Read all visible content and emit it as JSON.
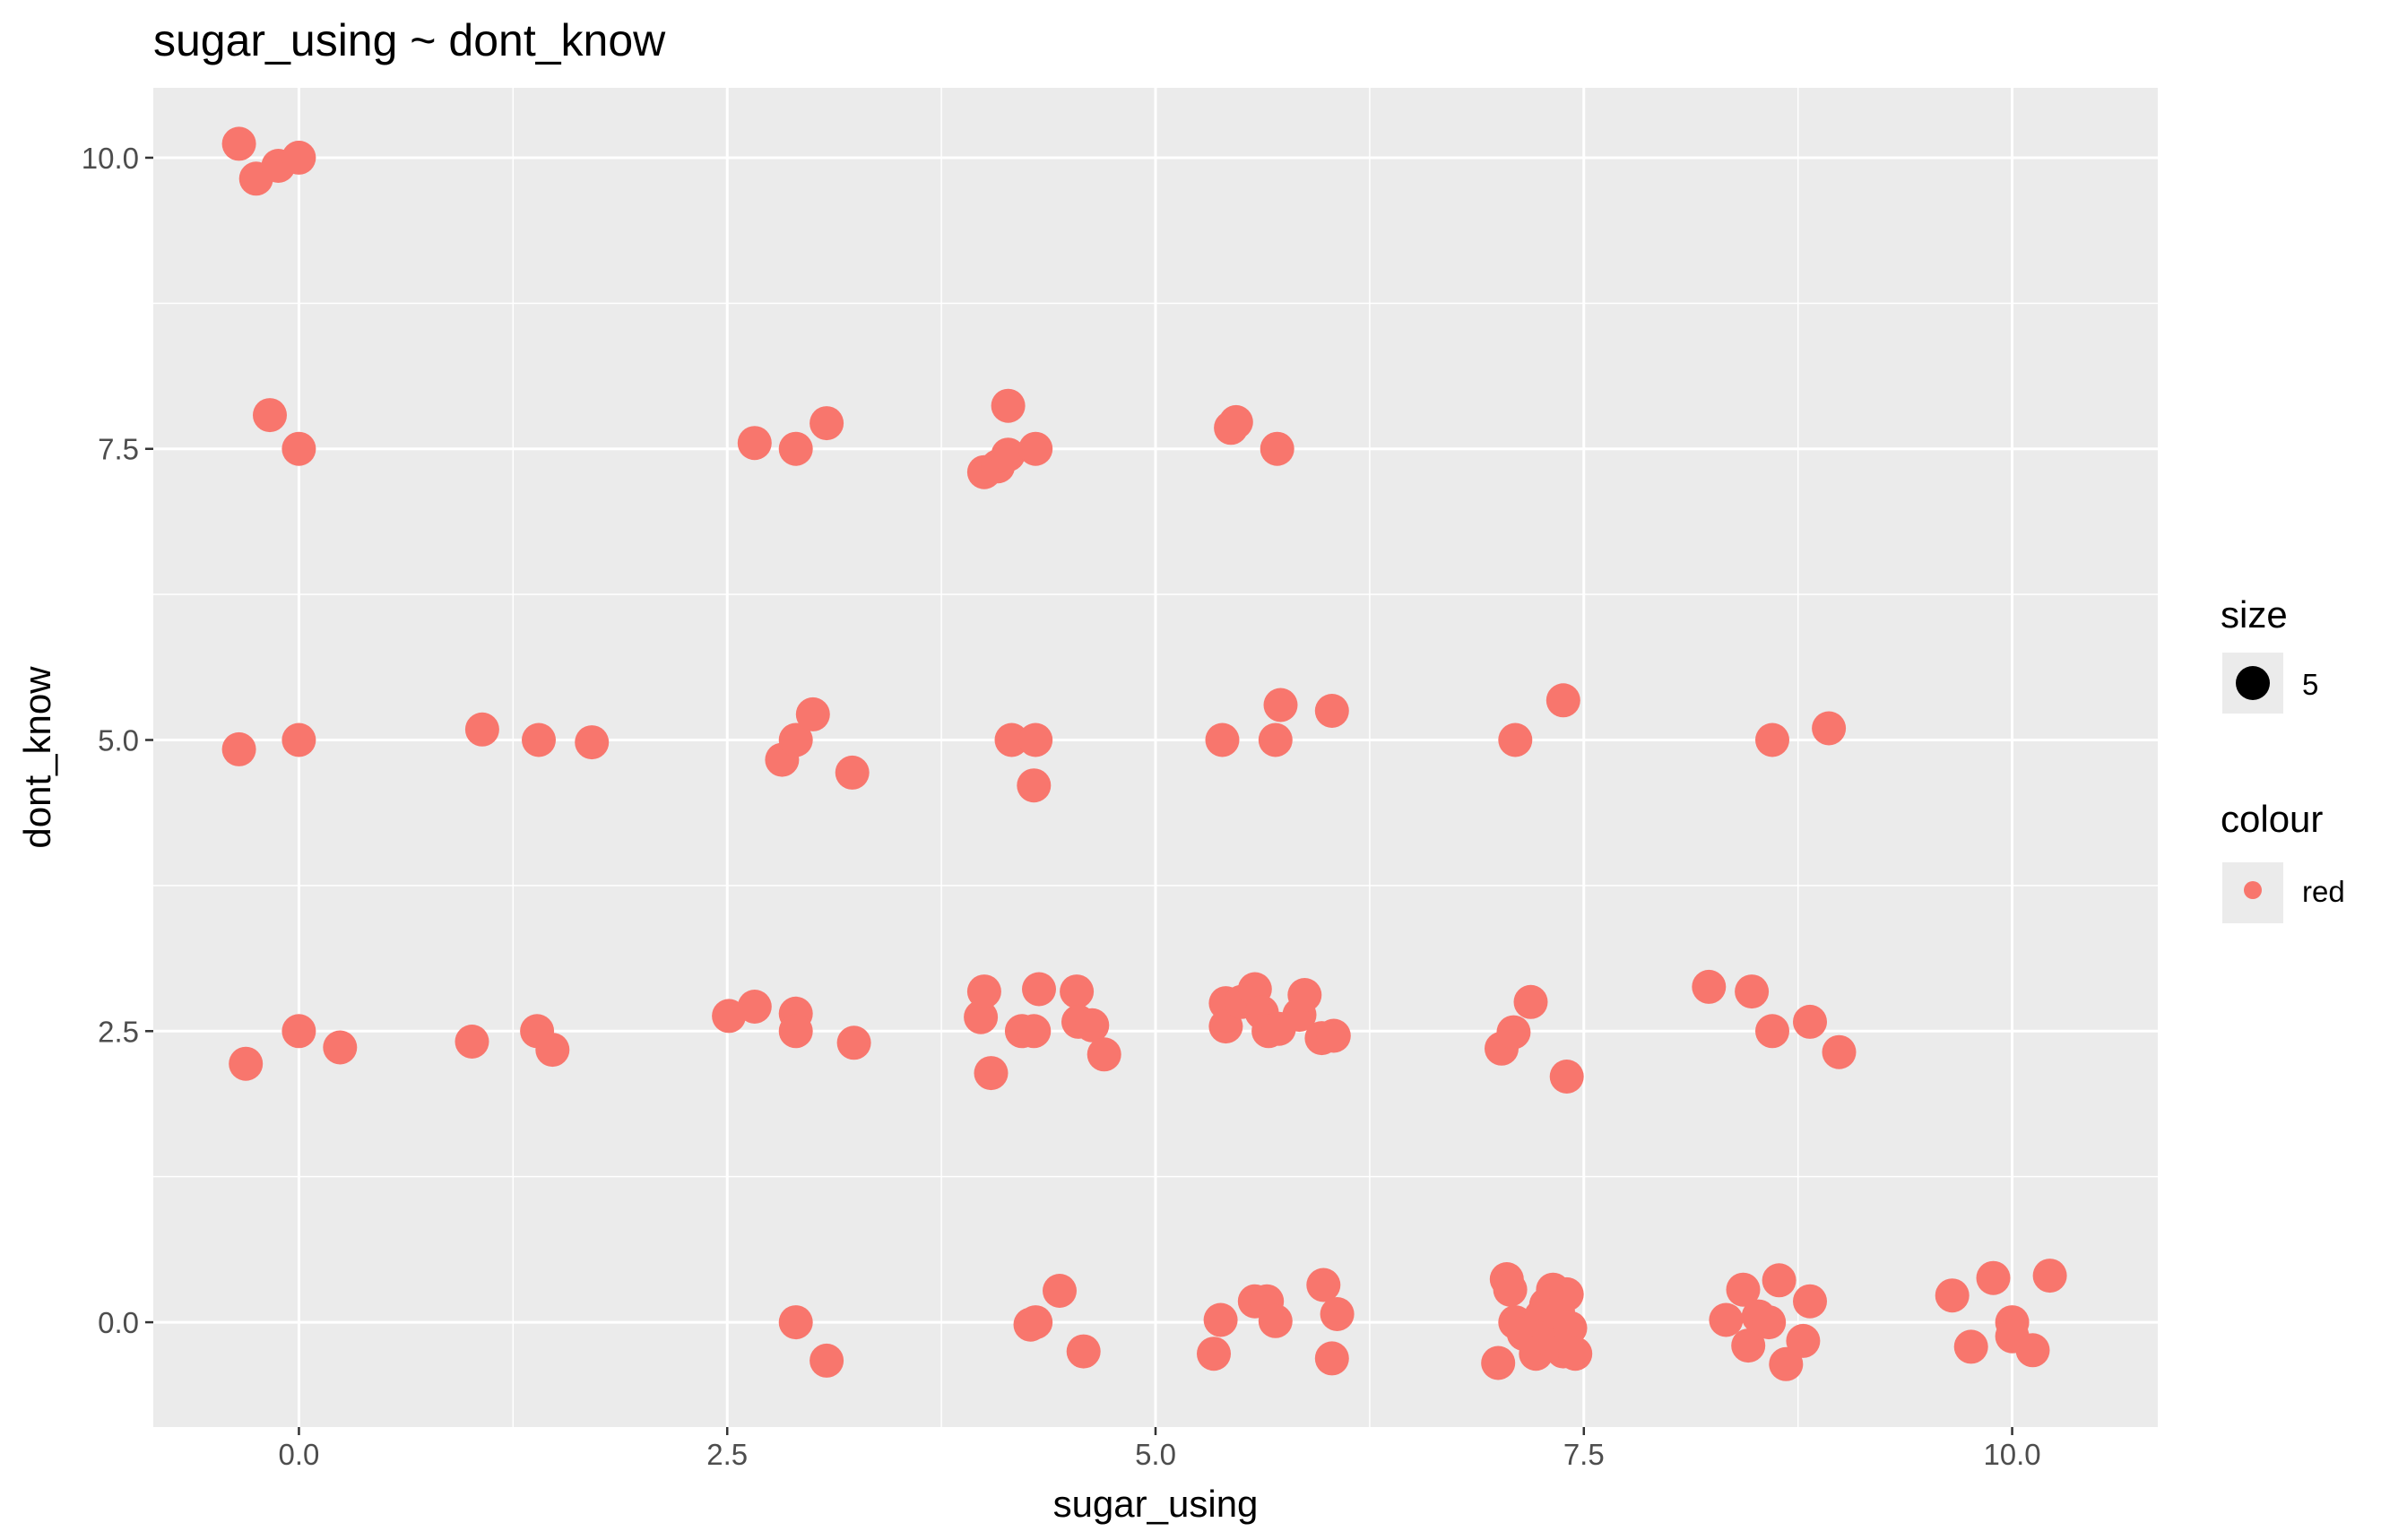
{
  "chart_data": {
    "type": "scatter",
    "title": "sugar_using ~ dont_know",
    "xlabel": "sugar_using",
    "ylabel": "dont_know",
    "xlim": [
      -0.85,
      10.85
    ],
    "ylim": [
      -0.9,
      10.6
    ],
    "x_ticks": [
      0.0,
      2.5,
      5.0,
      7.5,
      10.0
    ],
    "x_tick_labels": [
      "0.0",
      "2.5",
      "5.0",
      "7.5",
      "10.0"
    ],
    "y_ticks": [
      0.0,
      2.5,
      5.0,
      7.5,
      10.0
    ],
    "y_tick_labels": [
      "0.0",
      "2.5",
      "5.0",
      "7.5",
      "10.0"
    ],
    "grid": true,
    "point_color": "#F8766D",
    "panel_background": "#EBEBEB",
    "legend": {
      "placement": "right",
      "size": {
        "title": "size",
        "label": "5"
      },
      "colour": {
        "title": "colour",
        "label": "red"
      }
    },
    "points": [
      [
        -0.35,
        10.12
      ],
      [
        -0.25,
        9.82
      ],
      [
        -0.12,
        9.93
      ],
      [
        0.0,
        10.0
      ],
      [
        -0.17,
        7.79
      ],
      [
        0.0,
        7.5
      ],
      [
        2.66,
        7.55
      ],
      [
        2.9,
        7.5
      ],
      [
        3.08,
        7.72
      ],
      [
        4.0,
        7.3
      ],
      [
        4.08,
        7.35
      ],
      [
        4.14,
        7.45
      ],
      [
        4.14,
        7.87
      ],
      [
        4.3,
        7.5
      ],
      [
        5.44,
        7.68
      ],
      [
        5.47,
        7.73
      ],
      [
        5.71,
        7.5
      ],
      [
        -0.35,
        4.92
      ],
      [
        0.0,
        5.0
      ],
      [
        1.07,
        5.09
      ],
      [
        1.4,
        5.0
      ],
      [
        1.71,
        4.98
      ],
      [
        2.82,
        4.83
      ],
      [
        2.9,
        5.0
      ],
      [
        3.0,
        5.22
      ],
      [
        3.23,
        4.72
      ],
      [
        4.16,
        5.0
      ],
      [
        4.3,
        5.0
      ],
      [
        4.29,
        4.61
      ],
      [
        5.39,
        5.0
      ],
      [
        5.7,
        5.0
      ],
      [
        5.73,
        5.3
      ],
      [
        6.03,
        5.25
      ],
      [
        7.1,
        5.0
      ],
      [
        7.38,
        5.34
      ],
      [
        8.6,
        5.0
      ],
      [
        8.93,
        5.1
      ],
      [
        -0.31,
        2.22
      ],
      [
        0.0,
        2.5
      ],
      [
        0.24,
        2.36
      ],
      [
        1.01,
        2.41
      ],
      [
        1.39,
        2.5
      ],
      [
        1.48,
        2.34
      ],
      [
        2.51,
        2.63
      ],
      [
        2.66,
        2.71
      ],
      [
        2.9,
        2.65
      ],
      [
        2.9,
        2.5
      ],
      [
        3.24,
        2.4
      ],
      [
        3.98,
        2.62
      ],
      [
        4.0,
        2.84
      ],
      [
        4.04,
        2.14
      ],
      [
        4.22,
        2.5
      ],
      [
        4.32,
        2.86
      ],
      [
        4.29,
        2.5
      ],
      [
        4.54,
        2.84
      ],
      [
        4.55,
        2.58
      ],
      [
        4.63,
        2.55
      ],
      [
        4.7,
        2.3
      ],
      [
        5.41,
        2.74
      ],
      [
        5.41,
        2.54
      ],
      [
        5.5,
        2.75
      ],
      [
        5.58,
        2.86
      ],
      [
        5.62,
        2.66
      ],
      [
        5.66,
        2.5
      ],
      [
        5.72,
        2.52
      ],
      [
        5.84,
        2.64
      ],
      [
        5.87,
        2.81
      ],
      [
        5.97,
        2.44
      ],
      [
        6.04,
        2.46
      ],
      [
        7.02,
        2.35
      ],
      [
        7.09,
        2.49
      ],
      [
        7.19,
        2.75
      ],
      [
        7.4,
        2.11
      ],
      [
        8.23,
        2.88
      ],
      [
        8.48,
        2.84
      ],
      [
        8.6,
        2.5
      ],
      [
        8.82,
        2.58
      ],
      [
        8.99,
        2.32
      ],
      [
        2.9,
        0.0
      ],
      [
        3.08,
        -0.33
      ],
      [
        4.27,
        -0.02
      ],
      [
        4.3,
        0.0
      ],
      [
        4.44,
        0.27
      ],
      [
        4.58,
        -0.25
      ],
      [
        5.34,
        -0.27
      ],
      [
        5.38,
        0.02
      ],
      [
        5.58,
        0.18
      ],
      [
        5.65,
        0.18
      ],
      [
        5.7,
        0.01
      ],
      [
        5.98,
        0.32
      ],
      [
        6.03,
        -0.31
      ],
      [
        6.06,
        0.07
      ],
      [
        7.0,
        -0.35
      ],
      [
        7.05,
        0.37
      ],
      [
        7.07,
        0.28
      ],
      [
        7.1,
        0.0
      ],
      [
        7.15,
        -0.1
      ],
      [
        7.22,
        -0.27
      ],
      [
        7.25,
        0.05
      ],
      [
        7.28,
        0.15
      ],
      [
        7.3,
        -0.15
      ],
      [
        7.32,
        0.28
      ],
      [
        7.35,
        0.08
      ],
      [
        7.38,
        -0.25
      ],
      [
        7.4,
        0.24
      ],
      [
        7.42,
        -0.05
      ],
      [
        7.45,
        -0.27
      ],
      [
        8.33,
        0.02
      ],
      [
        8.43,
        0.28
      ],
      [
        8.46,
        -0.2
      ],
      [
        8.52,
        0.05
      ],
      [
        8.58,
        0.0
      ],
      [
        8.64,
        0.36
      ],
      [
        8.68,
        -0.36
      ],
      [
        8.78,
        -0.16
      ],
      [
        8.82,
        0.18
      ],
      [
        9.65,
        0.23
      ],
      [
        9.76,
        -0.21
      ],
      [
        9.89,
        0.38
      ],
      [
        10.0,
        0.0
      ],
      [
        10.0,
        -0.12
      ],
      [
        10.12,
        -0.24
      ],
      [
        10.22,
        0.4
      ]
    ]
  }
}
